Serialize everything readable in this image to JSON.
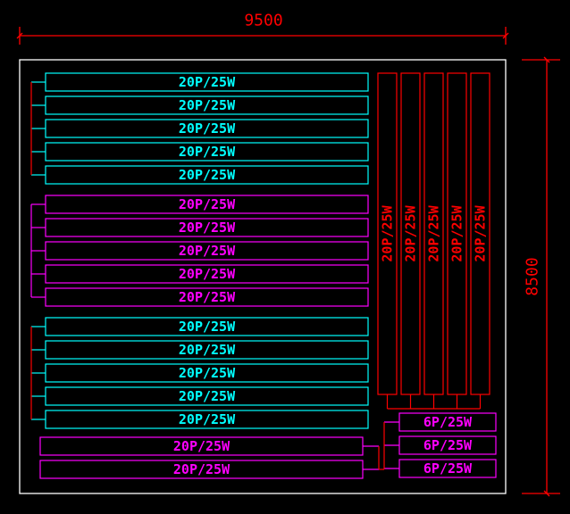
{
  "dimensions": {
    "width_label": "9500",
    "height_label": "8500"
  },
  "colors": {
    "dimension": "#ff0000",
    "outline": "#ffffff",
    "cyan": "#00ffff",
    "magenta": "#ff00ff",
    "red": "#ff0000"
  },
  "horizontal_groups": [
    {
      "color": "cyan",
      "tubes": [
        "20P/25W",
        "20P/25W",
        "20P/25W",
        "20P/25W",
        "20P/25W"
      ]
    },
    {
      "color": "magenta",
      "tubes": [
        "20P/25W",
        "20P/25W",
        "20P/25W",
        "20P/25W",
        "20P/25W"
      ]
    },
    {
      "color": "cyan",
      "tubes": [
        "20P/25W",
        "20P/25W",
        "20P/25W",
        "20P/25W",
        "20P/25W"
      ]
    }
  ],
  "bottom_tubes": {
    "color": "magenta",
    "tubes": [
      "20P/25W",
      "20P/25W"
    ]
  },
  "vertical_tubes": {
    "color": "red",
    "tubes": [
      "20P/25W",
      "20P/25W",
      "20P/25W",
      "20P/25W",
      "20P/25W"
    ]
  },
  "small_tubes": {
    "color": "magenta",
    "tubes": [
      "6P/25W",
      "6P/25W",
      "6P/25W"
    ]
  }
}
